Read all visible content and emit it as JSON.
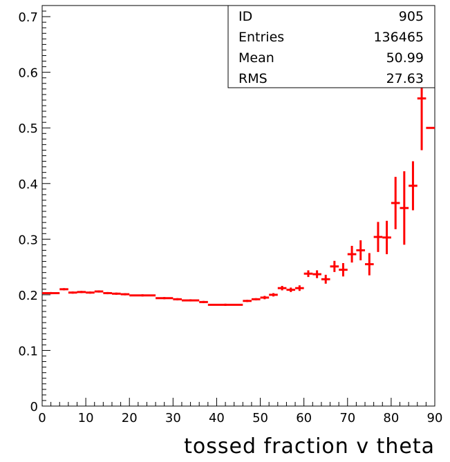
{
  "chart_data": {
    "type": "scatter",
    "xlabel": "tossed fraction v theta",
    "ylabel": "",
    "xlim": [
      0,
      90
    ],
    "ylim": [
      0,
      0.72
    ],
    "xticks": [
      0,
      10,
      20,
      30,
      40,
      50,
      60,
      70,
      80,
      90
    ],
    "yticks": [
      0,
      0.1,
      0.2,
      0.3,
      0.4,
      0.5,
      0.6,
      0.7
    ],
    "grid": false,
    "color": "#ff0000",
    "stats": [
      {
        "label": "ID",
        "value": "905"
      },
      {
        "label": "Entries",
        "value": "136465"
      },
      {
        "label": "Mean",
        "value": "50.99"
      },
      {
        "label": "RMS",
        "value": "27.63"
      }
    ],
    "points": [
      {
        "x": [
          0,
          4
        ],
        "y": 0.203,
        "err": 0.002
      },
      {
        "x": [
          4,
          6
        ],
        "y": 0.21,
        "err": 0.002
      },
      {
        "x": [
          6,
          8
        ],
        "y": 0.204,
        "err": 0.002
      },
      {
        "x": [
          8,
          10
        ],
        "y": 0.205,
        "err": 0.002
      },
      {
        "x": [
          10,
          12
        ],
        "y": 0.204,
        "err": 0.002
      },
      {
        "x": [
          12,
          14
        ],
        "y": 0.206,
        "err": 0.002
      },
      {
        "x": [
          14,
          16
        ],
        "y": 0.203,
        "err": 0.002
      },
      {
        "x": [
          16,
          18
        ],
        "y": 0.202,
        "err": 0.002
      },
      {
        "x": [
          18,
          20
        ],
        "y": 0.201,
        "err": 0.002
      },
      {
        "x": [
          20,
          26
        ],
        "y": 0.199,
        "err": 0.002
      },
      {
        "x": [
          26,
          30
        ],
        "y": 0.194,
        "err": 0.002
      },
      {
        "x": [
          30,
          32
        ],
        "y": 0.192,
        "err": 0.002
      },
      {
        "x": [
          32,
          36
        ],
        "y": 0.19,
        "err": 0.002
      },
      {
        "x": [
          36,
          38
        ],
        "y": 0.187,
        "err": 0.002
      },
      {
        "x": [
          38,
          46
        ],
        "y": 0.182,
        "err": 0.002
      },
      {
        "x": [
          46,
          48
        ],
        "y": 0.189,
        "err": 0.002
      },
      {
        "x": [
          48,
          50
        ],
        "y": 0.192,
        "err": 0.002
      },
      {
        "x": [
          50,
          52
        ],
        "y": 0.195,
        "err": 0.003
      },
      {
        "x": [
          52,
          54
        ],
        "y": 0.2,
        "err": 0.003
      },
      {
        "x": [
          54,
          56
        ],
        "y": 0.212,
        "err": 0.004
      },
      {
        "x": [
          56,
          58
        ],
        "y": 0.209,
        "err": 0.004
      },
      {
        "x": [
          58,
          60
        ],
        "y": 0.212,
        "err": 0.005
      },
      {
        "x": [
          60,
          62
        ],
        "y": 0.238,
        "err": 0.006
      },
      {
        "x": [
          62,
          64
        ],
        "y": 0.237,
        "err": 0.007
      },
      {
        "x": [
          64,
          66
        ],
        "y": 0.228,
        "err": 0.008
      },
      {
        "x": [
          66,
          68
        ],
        "y": 0.251,
        "err": 0.01
      },
      {
        "x": [
          68,
          70
        ],
        "y": 0.245,
        "err": 0.012
      },
      {
        "x": [
          70,
          72
        ],
        "y": 0.273,
        "err": 0.015
      },
      {
        "x": [
          72,
          74
        ],
        "y": 0.28,
        "err": 0.018
      },
      {
        "x": [
          74,
          76
        ],
        "y": 0.255,
        "err": 0.02
      },
      {
        "x": [
          76,
          78
        ],
        "y": 0.304,
        "err": 0.027
      },
      {
        "x": [
          78,
          80
        ],
        "y": 0.303,
        "err": 0.03
      },
      {
        "x": [
          80,
          82
        ],
        "y": 0.365,
        "err": 0.047
      },
      {
        "x": [
          82,
          84
        ],
        "y": 0.356,
        "err": 0.066
      },
      {
        "x": [
          84,
          86
        ],
        "y": 0.396,
        "err": 0.044
      },
      {
        "x": [
          86,
          88
        ],
        "y": 0.553,
        "err": 0.093
      },
      {
        "x": [
          88,
          90
        ],
        "y": 0.5,
        "err": 0
      }
    ]
  }
}
